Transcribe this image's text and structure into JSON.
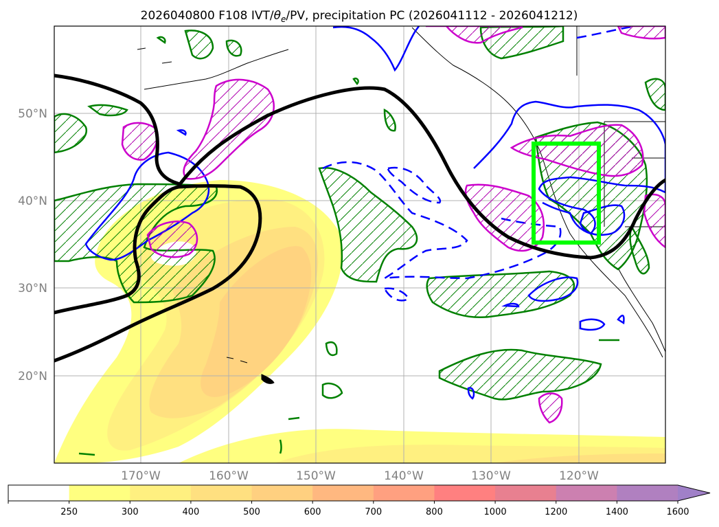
{
  "map": {
    "title_prefix": "2026040800 F108 IVT/",
    "title_theta": "θ",
    "title_theta_sub": "e",
    "title_suffix": "/PV, precipitation PC (2026041112 - 2026041212)",
    "lon_labels": [
      "170°W",
      "160°W",
      "150°W",
      "140°W",
      "130°W",
      "120°W"
    ],
    "lat_labels": [
      "50°N",
      "40°N",
      "30°N",
      "20°N"
    ],
    "target_box_color": "#00ff00"
  },
  "colorbar": {
    "ticks": [
      "250",
      "300",
      "400",
      "500",
      "600",
      "700",
      "800",
      "1000",
      "1200",
      "1400",
      "1600"
    ],
    "colors": [
      "#ffffff",
      "#ffff80",
      "#fff080",
      "#ffe080",
      "#ffd080",
      "#ffb880",
      "#ffa080",
      "#ff8080",
      "#e88090",
      "#cc80b0",
      "#b080c0",
      "#a080c8"
    ]
  },
  "legend_colors": {
    "ivt_fill": "#ffe680",
    "pv_contour": "#000000",
    "positive_anomaly": "#008000",
    "negative_anomaly": "#0000ff",
    "theta_e": "#cc00cc"
  }
}
